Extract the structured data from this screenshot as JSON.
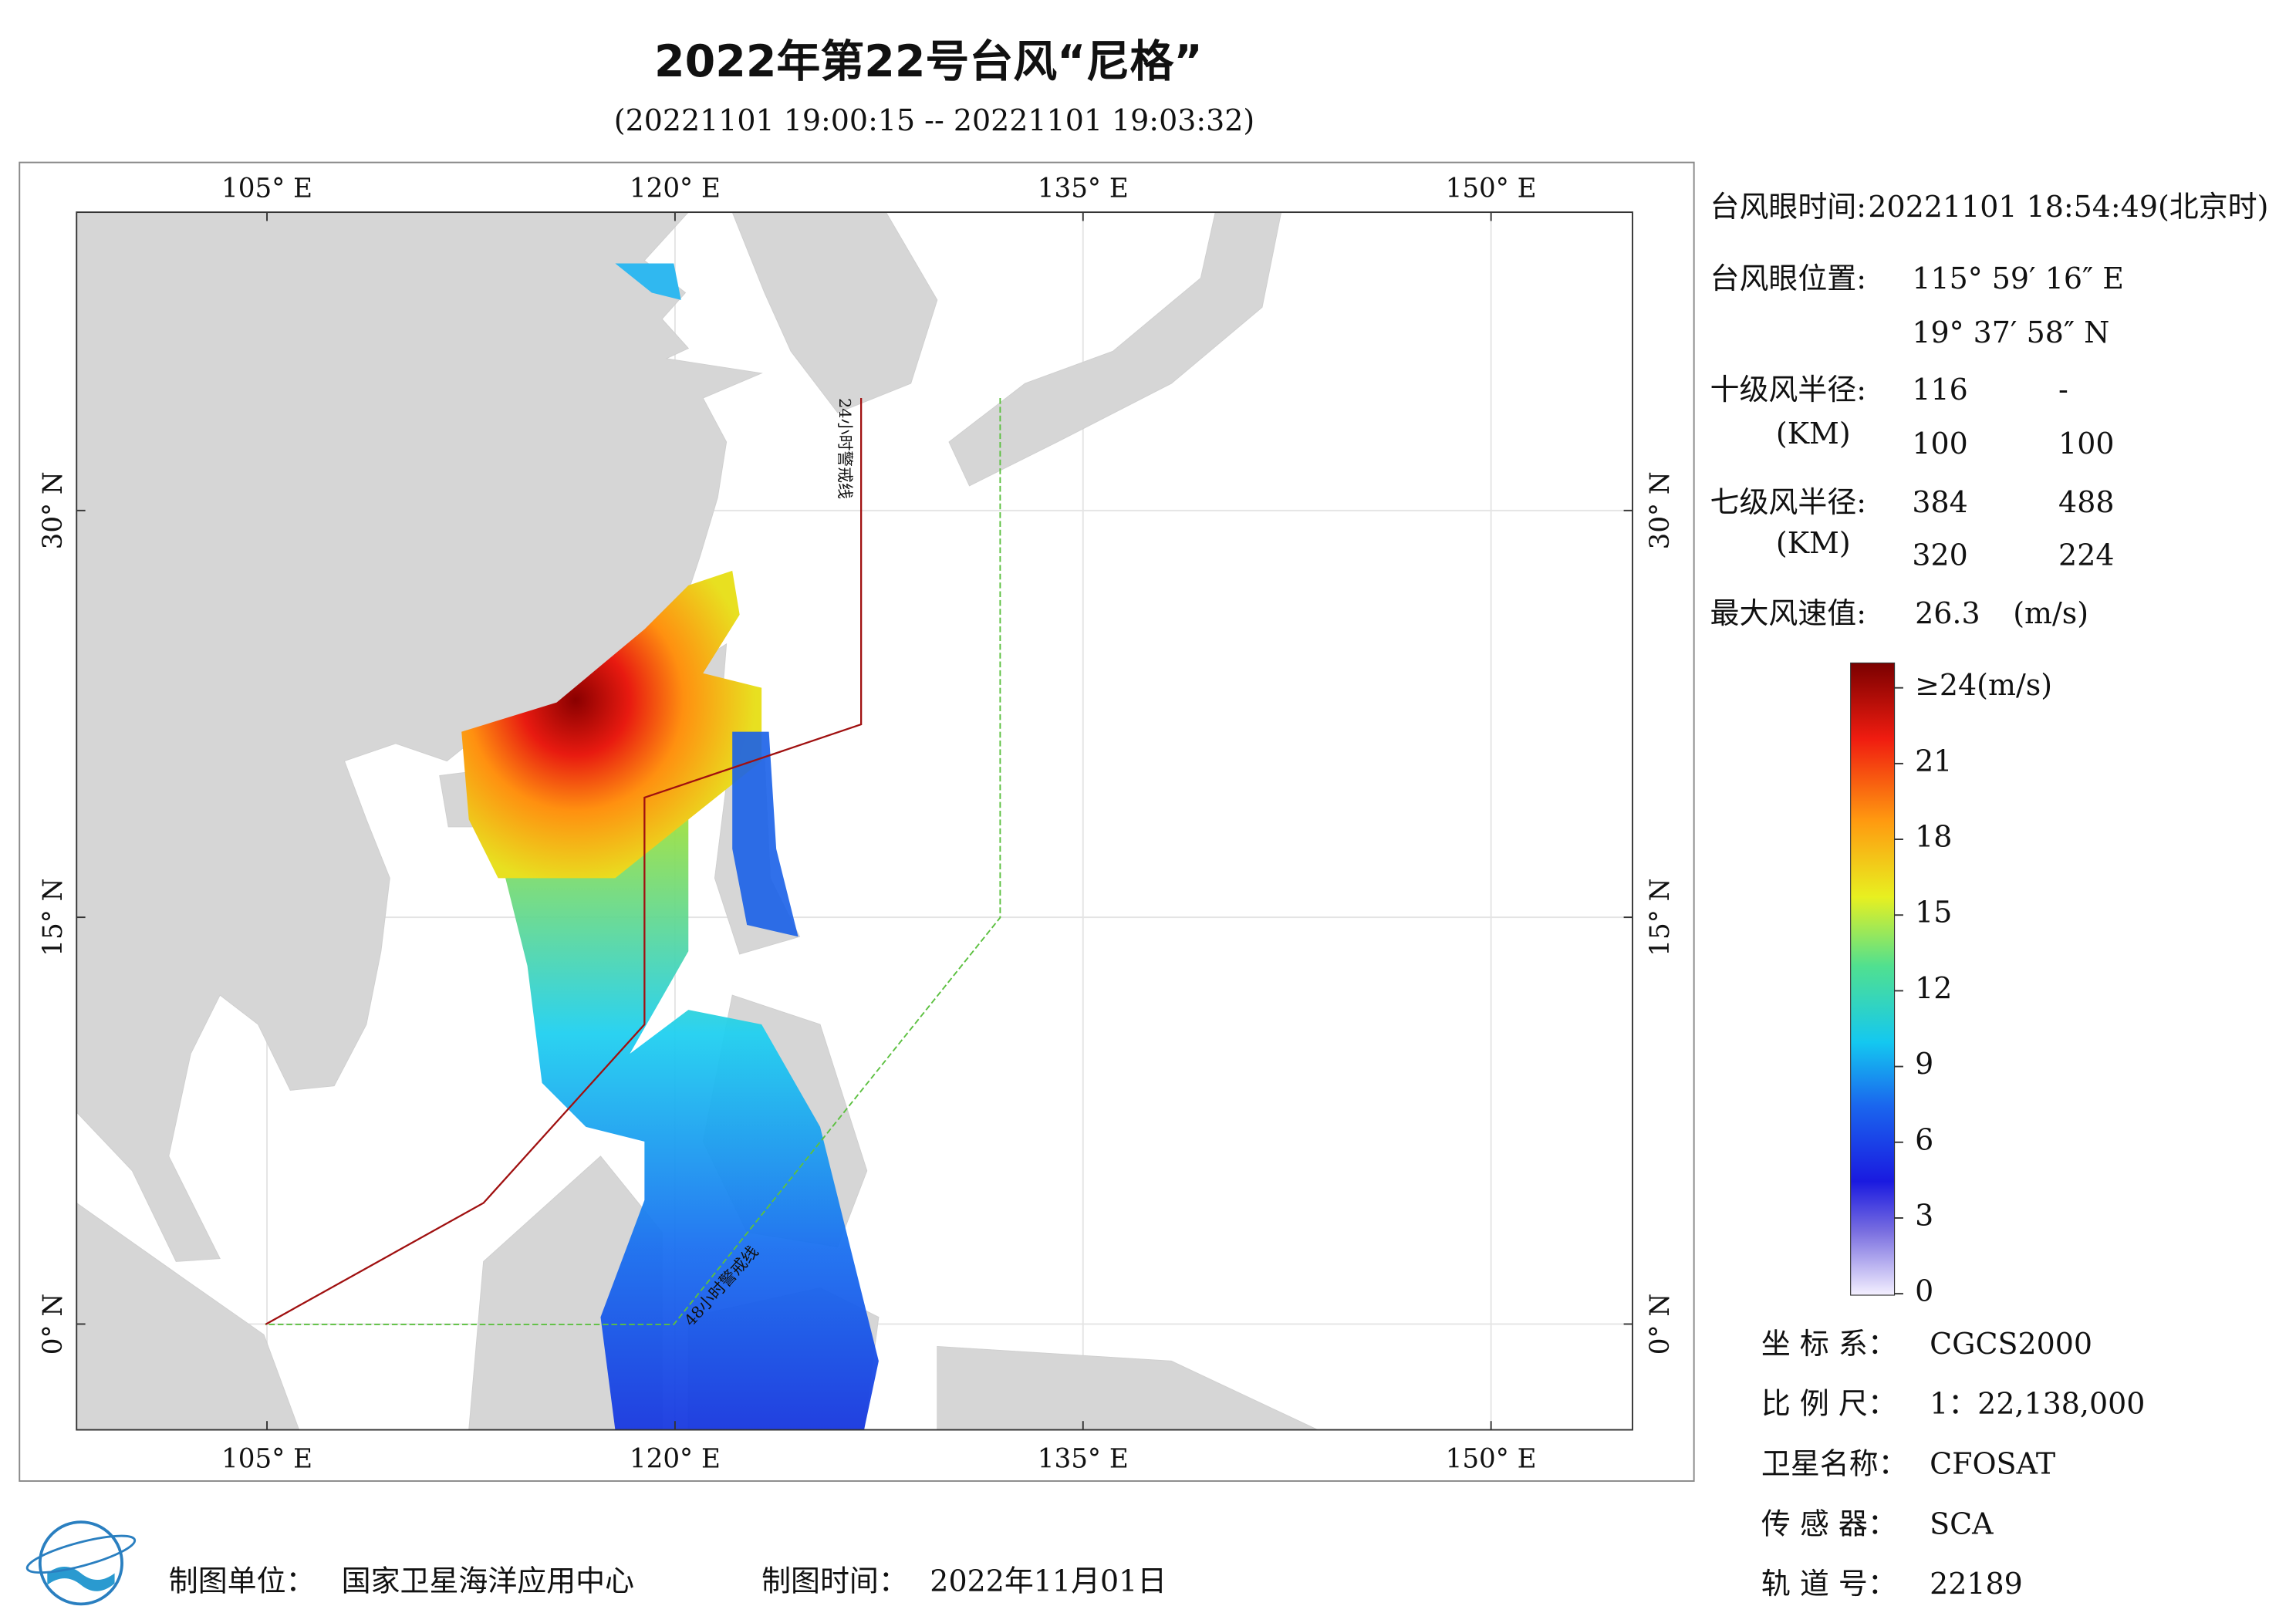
{
  "title": "2022年第22号台风“尼格”",
  "subtitle": "(20221101 19:00:15 -- 20221101 19:03:32)",
  "map": {
    "xlim": [
      98,
      155.2
    ],
    "ylim": [
      -3.9,
      41
    ],
    "xticks": [
      {
        "value": 105,
        "label": "105° E"
      },
      {
        "value": 120,
        "label": "120° E"
      },
      {
        "value": 135,
        "label": "135° E"
      },
      {
        "value": 150,
        "label": "150° E"
      }
    ],
    "yticks": [
      {
        "value": 0,
        "label": "0° N"
      },
      {
        "value": 15,
        "label": "15° N"
      },
      {
        "value": 30,
        "label": "30° N"
      }
    ],
    "grid": true,
    "line_labels": [
      "24小时警戒线",
      "48小时警戒线"
    ]
  },
  "info": {
    "eye_time": {
      "label": "台风眼时间:",
      "value": "20221101 18:54:49(北京时)"
    },
    "eye_position": {
      "label": "台风眼位置:",
      "lon": "115° 59′ 16″ E",
      "lat": "19° 37′ 58″ N"
    },
    "wind_radius_10": {
      "label": "十级风半径:",
      "unit": "(KM)",
      "rows": [
        [
          116,
          "-"
        ],
        [
          100,
          100
        ]
      ]
    },
    "wind_radius_7": {
      "label": "七级风半径:",
      "unit": "(KM)",
      "rows": [
        [
          384,
          488
        ],
        [
          320,
          224
        ]
      ]
    },
    "max_wind": {
      "label": "最大风速值:",
      "value": 26.3,
      "unit": "(m/s)"
    }
  },
  "colorbar": {
    "lim": [
      0,
      24
    ],
    "ticks": [
      0,
      3,
      6,
      9,
      12,
      15,
      18,
      21,
      {
        "value": 24,
        "label": "≥24(m/s)"
      }
    ]
  },
  "metadata": [
    {
      "label": "坐 标 系：",
      "value": "CGCS2000"
    },
    {
      "label": "比 例 尺：",
      "value": "1：22,138,000"
    },
    {
      "label": "卫星名称：",
      "value": "CFOSAT"
    },
    {
      "label": "传 感 器：",
      "value": "SCA"
    },
    {
      "label": "轨 道 号：",
      "value": 22189
    }
  ],
  "footer": {
    "unit_label": "制图单位：",
    "unit": "国家卫星海洋应用中心",
    "date_label": "制图时间：",
    "date": "2022年11月01日"
  }
}
